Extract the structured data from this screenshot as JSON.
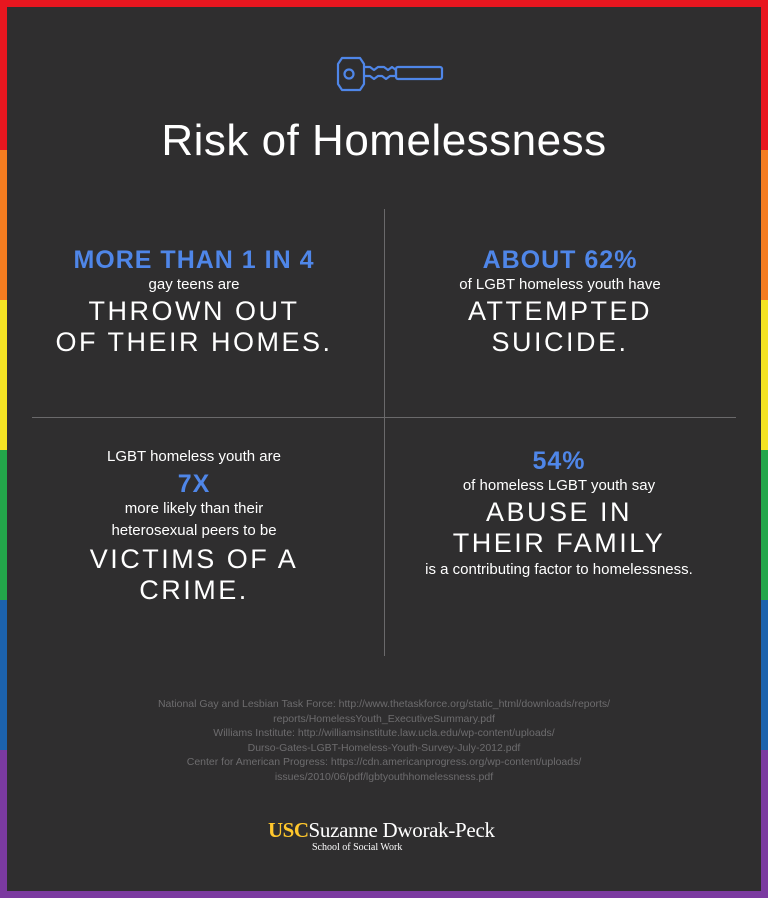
{
  "colors": {
    "rainbow": [
      "#e8161f",
      "#f47c20",
      "#f4e324",
      "#23a64a",
      "#1c62ad",
      "#7b3aa0"
    ],
    "panel": "#2f2e2f",
    "accent": "#4f86e8",
    "brand_gold": "#ffc72c"
  },
  "header": {
    "icon": "key-icon",
    "title": "Risk of Homelessness"
  },
  "stats": {
    "q1": {
      "stat": "MORE THAN 1 IN 4",
      "line1": "gay teens are",
      "big1": "THROWN OUT",
      "big2": "OF THEIR HOMES."
    },
    "q2": {
      "stat": "ABOUT 62%",
      "line1": "of LGBT homeless youth have",
      "big1": "ATTEMPTED",
      "big2": "SUICIDE."
    },
    "q3": {
      "line1": "LGBT homeless youth are",
      "stat": "7X",
      "line2": "more likely than their",
      "line3": "heterosexual peers to be",
      "big1": "VICTIMS OF A CRIME."
    },
    "q4": {
      "stat": "54%",
      "line1": "of homeless LGBT youth say",
      "big1": "ABUSE IN",
      "big2": "THEIR FAMILY",
      "line2": "is a contributing factor to homelessness."
    }
  },
  "sources": [
    "National Gay and Lesbian Task Force: http://www.thetaskforce.org/static_html/downloads/reports/",
    "reports/HomelessYouth_ExecutiveSummary.pdf",
    "Williams Institute: http://williamsinstitute.law.ucla.edu/wp-content/uploads/",
    "Durso-Gates-LGBT-Homeless-Youth-Survey-July-2012.pdf",
    "Center for American Progress: https://cdn.americanprogress.org/wp-content/uploads/",
    "issues/2010/06/pdf/lgbtyouthhomelessness.pdf"
  ],
  "footer": {
    "usc": "USC",
    "name": "Suzanne Dworak-Peck",
    "school": "School of Social Work"
  }
}
